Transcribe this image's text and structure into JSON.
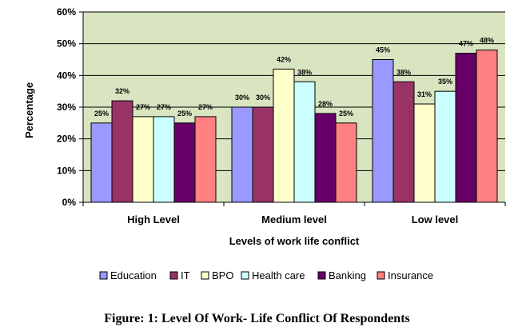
{
  "chart_data": {
    "type": "bar",
    "categories": [
      "High Level",
      "Medium level",
      "Low level"
    ],
    "series": [
      {
        "name": "Education",
        "values": [
          25,
          30,
          45
        ],
        "color": "#9999FF"
      },
      {
        "name": "IT",
        "values": [
          32,
          30,
          38
        ],
        "color": "#993366"
      },
      {
        "name": "BPO",
        "values": [
          27,
          42,
          31
        ],
        "color": "#FFFFCC"
      },
      {
        "name": "Health care",
        "values": [
          27,
          38,
          35
        ],
        "color": "#CCFFFF"
      },
      {
        "name": "Banking",
        "values": [
          25,
          28,
          47
        ],
        "color": "#660066"
      },
      {
        "name": "Insurance",
        "values": [
          27,
          25,
          48
        ],
        "color": "#FF8080"
      }
    ],
    "xlabel": "Levels of work life conflict",
    "ylabel": "Percentage",
    "ylim": [
      0,
      60
    ],
    "yticks": [
      "0%",
      "10%",
      "20%",
      "30%",
      "40%",
      "50%",
      "60%"
    ],
    "value_suffix": "%",
    "grid": true,
    "plot_background": "#D9E5C1",
    "legend_position": "bottom"
  },
  "caption": "Figure: 1: Level Of Work- Life Conflict Of Respondents"
}
